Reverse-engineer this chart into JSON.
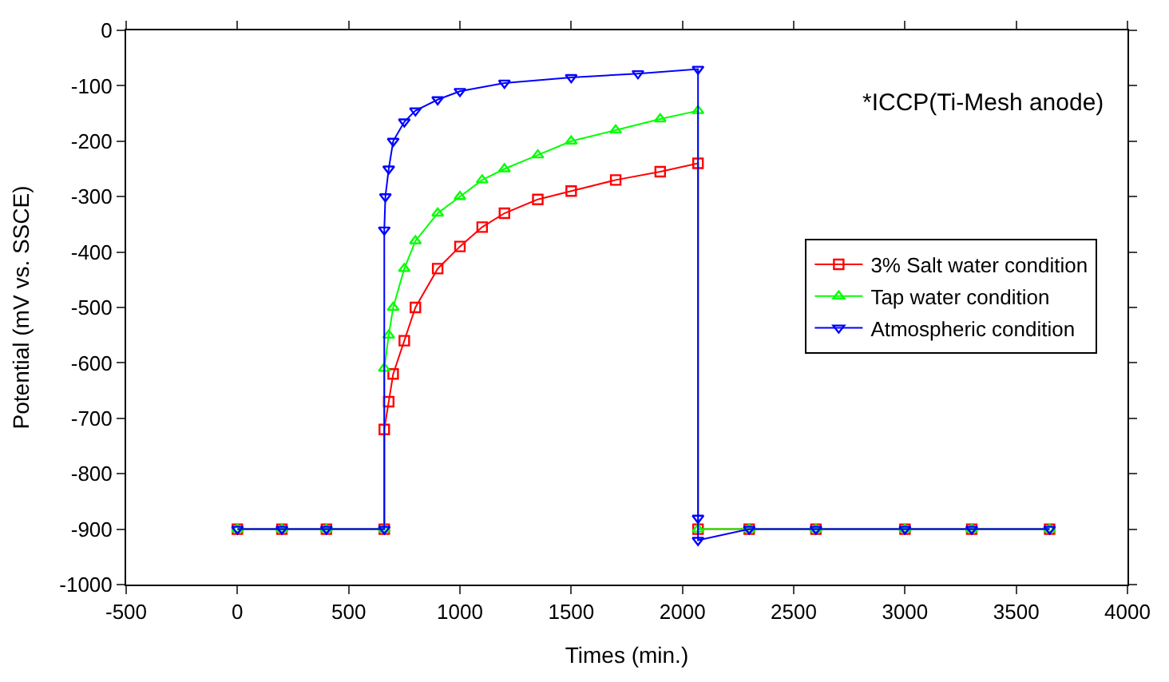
{
  "chart_data": {
    "type": "line",
    "xlabel": "Times (min.)",
    "ylabel": "Potential (mV vs. SSCE)",
    "annotations": [
      "*ICCP(Ti-Mesh anode)"
    ],
    "xlim": [
      -500,
      4000
    ],
    "xticks": [
      -500,
      0,
      500,
      1000,
      1500,
      2000,
      2500,
      3000,
      3500,
      4000
    ],
    "ylim": [
      -1000,
      0
    ],
    "yticks": [
      -1000,
      -900,
      -800,
      -700,
      -600,
      -500,
      -400,
      -300,
      -200,
      -100,
      0
    ],
    "grid": false,
    "legend": "right",
    "line_style": "solid",
    "series": [
      {
        "name": "3% Salt water condition",
        "color": "#ff0000",
        "marker": "square",
        "x": [
          0,
          200,
          400,
          660,
          660,
          680,
          700,
          750,
          800,
          900,
          1000,
          1100,
          1200,
          1350,
          1500,
          1700,
          1900,
          2070,
          2070,
          2300,
          2600,
          3000,
          3300,
          3650
        ],
        "values": [
          -900,
          -900,
          -900,
          -900,
          -720,
          -670,
          -620,
          -560,
          -500,
          -430,
          -390,
          -355,
          -330,
          -305,
          -290,
          -270,
          -255,
          -240,
          -900,
          -900,
          -900,
          -900,
          -900,
          -900
        ]
      },
      {
        "name": "Tap water condition",
        "color": "#00ff00",
        "marker": "triangle",
        "x": [
          0,
          200,
          400,
          660,
          660,
          680,
          700,
          750,
          800,
          900,
          1000,
          1100,
          1200,
          1350,
          1500,
          1700,
          1900,
          2070,
          2070,
          2300,
          2600,
          3000,
          3300,
          3650
        ],
        "values": [
          -900,
          -900,
          -900,
          -900,
          -610,
          -550,
          -500,
          -430,
          -380,
          -330,
          -300,
          -270,
          -250,
          -225,
          -200,
          -180,
          -160,
          -145,
          -900,
          -900,
          -900,
          -900,
          -900,
          -900
        ]
      },
      {
        "name": "Atmospheric condition",
        "color": "#0000ff",
        "marker": "triangle-down",
        "x": [
          0,
          200,
          400,
          660,
          660,
          665,
          680,
          700,
          750,
          800,
          900,
          1000,
          1200,
          1500,
          1800,
          2070,
          2070,
          2070,
          2300,
          2600,
          3000,
          3300,
          3650
        ],
        "values": [
          -900,
          -900,
          -900,
          -900,
          -360,
          -300,
          -250,
          -200,
          -165,
          -145,
          -125,
          -110,
          -95,
          -85,
          -78,
          -70,
          -880,
          -920,
          -900,
          -900,
          -900,
          -900,
          -900
        ]
      }
    ]
  }
}
